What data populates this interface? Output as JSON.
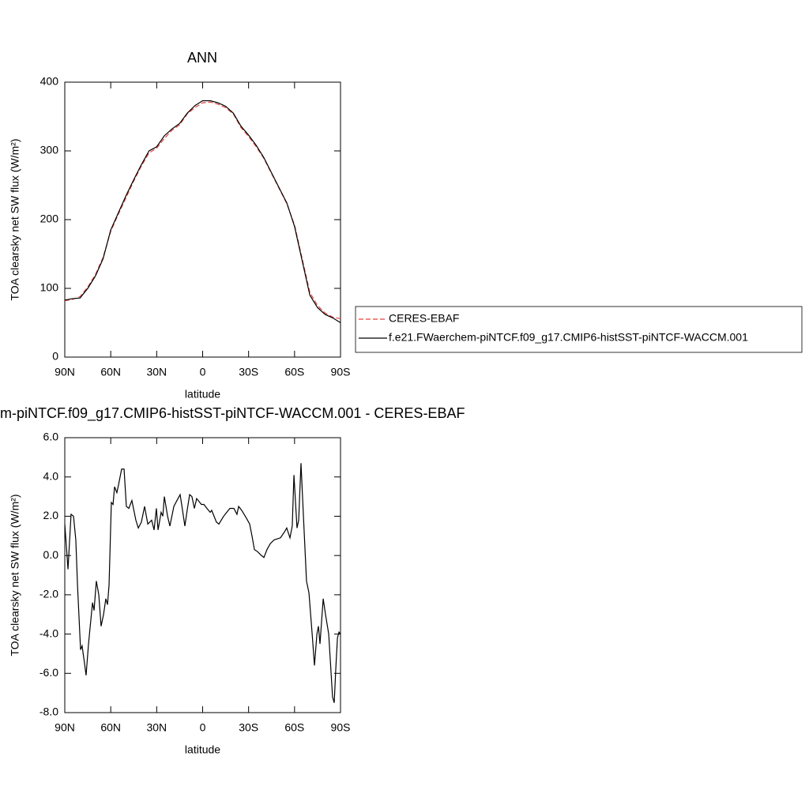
{
  "chart_data": [
    {
      "type": "line",
      "title": "ANN",
      "xlabel": "latitude",
      "ylabel": "TOA clearsky net SW flux (W/m²)",
      "x": [
        90,
        85,
        80,
        75,
        70,
        65,
        60,
        55,
        50,
        45,
        40,
        35,
        30,
        25,
        20,
        15,
        10,
        5,
        0,
        -5,
        -10,
        -15,
        -20,
        -25,
        -30,
        -35,
        -40,
        -45,
        -50,
        -55,
        -60,
        -65,
        -70,
        -75,
        -80,
        -85,
        -90
      ],
      "series": [
        {
          "name": "CERES-EBAF",
          "color": "#e8403a",
          "linestyle": "dashed",
          "values": [
            82,
            84,
            88,
            102,
            120,
            145,
            183,
            208,
            232,
            256,
            278,
            297,
            304,
            318,
            330,
            338,
            354,
            363,
            370,
            371,
            368,
            363,
            354,
            334,
            321,
            306,
            289,
            267,
            245,
            223,
            192,
            143,
            94,
            75,
            64,
            58,
            56
          ]
        },
        {
          "name": "f.e21.FWaerchem-piNTCF.f09_g17.CMIP6-histSST-piNTCF-WACCM.001",
          "color": "#000000",
          "linestyle": "solid",
          "values": [
            83,
            85,
            86,
            100,
            118,
            143,
            185,
            210,
            235,
            258,
            280,
            300,
            306,
            322,
            332,
            340,
            355,
            366,
            373,
            373,
            370,
            365,
            355,
            336,
            323,
            308,
            290,
            268,
            246,
            224,
            190,
            140,
            90,
            72,
            62,
            57,
            50
          ]
        }
      ],
      "xlim": [
        90,
        -90
      ],
      "ylim": [
        0,
        400
      ],
      "xticks": [
        {
          "value": 90,
          "label": "90N"
        },
        {
          "value": 60,
          "label": "60N"
        },
        {
          "value": 30,
          "label": "30N"
        },
        0,
        {
          "value": -30,
          "label": "30S"
        },
        {
          "value": -60,
          "label": "60S"
        },
        {
          "value": -90,
          "label": "90S"
        }
      ],
      "yticks": [
        0,
        100,
        200,
        300,
        400
      ],
      "legend": "right"
    },
    {
      "type": "line",
      "title": "m-piNTCF.f09_g17.CMIP6-histSST-piNTCF-WACCM.001 - CERES-EBAF",
      "xlabel": "latitude",
      "ylabel": "TOA clearsky net SW flux (W/m²)",
      "x": [
        90,
        87.9,
        85.9,
        84.3,
        82.8,
        81.7,
        79.7,
        78.7,
        77.1,
        76.1,
        74.5,
        71.9,
        70.9,
        69.4,
        67.8,
        66.3,
        64.7,
        63.2,
        62.1,
        61.1,
        59.6,
        58.5,
        57.5,
        56.0,
        54.9,
        52.9,
        51.3,
        49.8,
        48.2,
        46.2,
        43.6,
        42.0,
        40.0,
        37.9,
        35.8,
        33.3,
        31.7,
        30.2,
        29.1,
        27.1,
        26.0,
        25.0,
        22.9,
        21.4,
        18.8,
        16.8,
        14.7,
        13.7,
        11.6,
        10.1,
        8.5,
        7.0,
        5.4,
        3.9,
        0.8,
        -0.8,
        -2.8,
        -4.9,
        -5.9,
        -9.0,
        -10.6,
        -13.7,
        -15.7,
        -17.8,
        -20.4,
        -22.4,
        -23.5,
        -25.5,
        -28.6,
        -30.7,
        -32.2,
        -33.8,
        -35.8,
        -38.4,
        -40.0,
        -42.0,
        -44.1,
        -46.7,
        -50.8,
        -53.4,
        -54.9,
        -57.0,
        -58.5,
        -59.6,
        -61.6,
        -62.7,
        -64.2,
        -65.8,
        -67.8,
        -69.4,
        -71.5,
        -73.0,
        -74.6,
        -75.6,
        -76.6,
        -78.7,
        -80.2,
        -82.3,
        -84.8,
        -85.9,
        -86.9,
        -88.0,
        -89.0,
        -90
      ],
      "series": [
        {
          "color": "#000000",
          "linestyle": "solid",
          "values": [
            1.6,
            -0.7,
            2.1,
            2.0,
            0.8,
            -1.5,
            -4.8,
            -4.6,
            -5.5,
            -6.1,
            -4.5,
            -2.4,
            -2.8,
            -1.3,
            -2.0,
            -3.6,
            -3.0,
            -2.2,
            -2.5,
            -1.5,
            2.7,
            2.6,
            3.5,
            3.2,
            3.6,
            4.4,
            4.4,
            2.5,
            2.4,
            2.8,
            1.8,
            1.4,
            1.7,
            2.5,
            1.6,
            1.8,
            1.3,
            2.4,
            1.3,
            2.2,
            2.0,
            3.0,
            2.0,
            1.5,
            2.5,
            2.8,
            3.1,
            2.6,
            1.5,
            2.3,
            3.1,
            3.0,
            2.4,
            2.9,
            2.6,
            2.6,
            2.4,
            2.2,
            2.3,
            1.7,
            1.6,
            2.0,
            2.2,
            2.4,
            2.4,
            2.1,
            2.5,
            2.3,
            1.9,
            1.6,
            1.0,
            0.3,
            0.2,
            0.0,
            -0.1,
            0.3,
            0.6,
            0.8,
            0.9,
            1.2,
            1.4,
            0.9,
            1.5,
            4.1,
            1.4,
            1.8,
            4.7,
            2.0,
            -1.3,
            -1.9,
            -4.0,
            -5.6,
            -4.0,
            -3.6,
            -4.5,
            -2.2,
            -3.0,
            -4.0,
            -7.2,
            -7.5,
            -5.8,
            -4.2,
            -3.9,
            -4.0
          ]
        }
      ],
      "xlim": [
        90,
        -90
      ],
      "ylim": [
        -8,
        6
      ],
      "xticks": [
        {
          "value": 90,
          "label": "90N"
        },
        {
          "value": 60,
          "label": "60N"
        },
        {
          "value": 30,
          "label": "30N"
        },
        0,
        {
          "value": -30,
          "label": "30S"
        },
        {
          "value": -60,
          "label": "60S"
        },
        {
          "value": -90,
          "label": "90S"
        }
      ],
      "yticks": [
        {
          "value": -8,
          "label": "-8.0"
        },
        {
          "value": -6,
          "label": "-6.0"
        },
        {
          "value": -4,
          "label": "-4.0"
        },
        {
          "value": -2,
          "label": "-2.0"
        },
        {
          "value": 0,
          "label": "0.0"
        },
        {
          "value": 2,
          "label": "2.0"
        },
        {
          "value": 4,
          "label": "4.0"
        },
        {
          "value": 6,
          "label": "6.0"
        }
      ]
    }
  ]
}
